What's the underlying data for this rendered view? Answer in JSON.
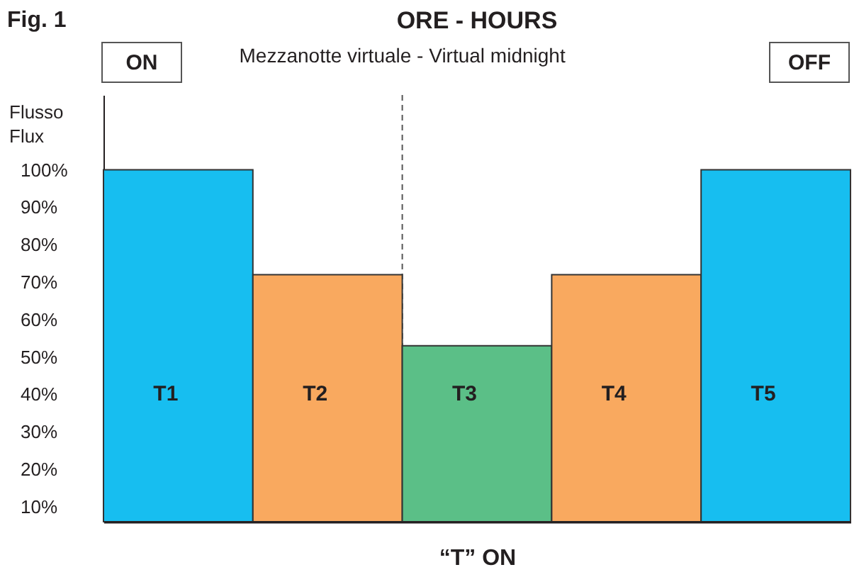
{
  "chart_data": {
    "type": "bar",
    "title": "ORE - HOURS",
    "xlabel": "“T” ON",
    "ylabel": "Flusso\nFlux",
    "categories": [
      "T1",
      "T2",
      "T3",
      "T4",
      "T5"
    ],
    "values": [
      100,
      72,
      53,
      72,
      100
    ],
    "colors": [
      "#17bef0",
      "#f9a95f",
      "#5bbf87",
      "#f9a95f",
      "#17bef0"
    ],
    "ylim": [
      6,
      120
    ],
    "yticks": [
      {
        "value": 10,
        "label": "10%"
      },
      {
        "value": 20,
        "label": "20%"
      },
      {
        "value": 30,
        "label": "30%"
      },
      {
        "value": 40,
        "label": "40%"
      },
      {
        "value": 50,
        "label": "50%"
      },
      {
        "value": 60,
        "label": "60%"
      },
      {
        "value": 70,
        "label": "70%"
      },
      {
        "value": 80,
        "label": "80%"
      },
      {
        "value": 90,
        "label": "90%"
      },
      {
        "value": 100,
        "label": "100%"
      }
    ],
    "ref_lines": [
      {
        "axis": "x",
        "value": "T3",
        "label": "Mezzanotte virtuale - Virtual midnight",
        "line_style": "dashed",
        "color": "#555555"
      }
    ],
    "annotations": [
      "Fig. 1",
      "ON",
      "OFF"
    ]
  }
}
